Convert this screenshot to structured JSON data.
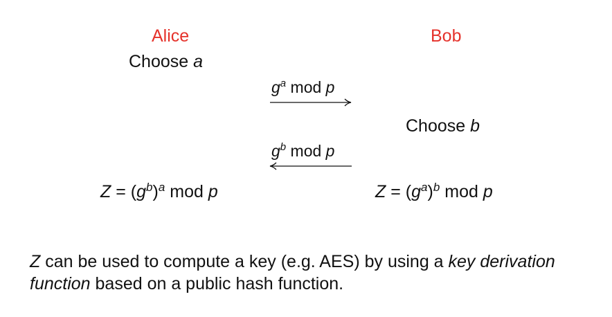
{
  "alice": {
    "name": "Alice",
    "choose_word": "Choose",
    "choose_var": "a",
    "result_lhs": "Z",
    "result_eq": "=",
    "result_open": "(",
    "result_base": "g",
    "result_inner_exp": "b",
    "result_close": ")",
    "result_outer_exp": "a",
    "result_mod": "mod",
    "result_modulus": "p"
  },
  "bob": {
    "name": "Bob",
    "choose_word": "Choose",
    "choose_var": "b",
    "result_lhs": "Z",
    "result_eq": "=",
    "result_open": "(",
    "result_base": "g",
    "result_inner_exp": "a",
    "result_close": ")",
    "result_outer_exp": "b",
    "result_mod": "mod",
    "result_modulus": "p"
  },
  "messages": [
    {
      "base": "g",
      "exp": "a",
      "mod": "mod",
      "modulus": "p",
      "direction": "right"
    },
    {
      "base": "g",
      "exp": "b",
      "mod": "mod",
      "modulus": "p",
      "direction": "left"
    }
  ],
  "note": {
    "var": "Z",
    "part1": " can be used to compute a key (e.g. AES) by using a ",
    "em1": "key derivation function",
    "part2": " based on a public hash function."
  },
  "colors": {
    "party": "#e5322b",
    "text": "#111111"
  }
}
